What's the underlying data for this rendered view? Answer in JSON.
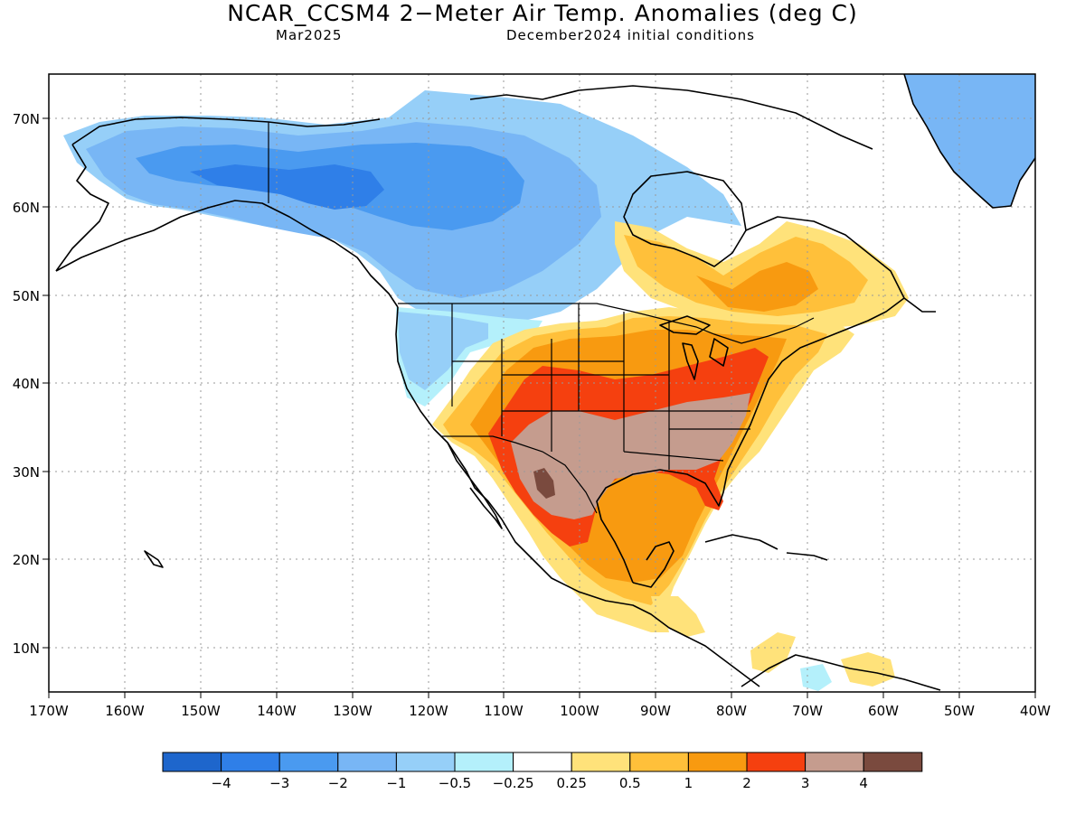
{
  "header": {
    "title": "NCAR_CCSM4 2−Meter Air Temp. Anomalies (deg C)",
    "valid_month": "Mar2025",
    "init": "December2024 initial conditions"
  },
  "axes": {
    "lon_ticks": [
      "170W",
      "160W",
      "150W",
      "140W",
      "130W",
      "120W",
      "110W",
      "100W",
      "90W",
      "80W",
      "70W",
      "60W",
      "50W",
      "40W"
    ],
    "lat_ticks": [
      "70N",
      "60N",
      "50N",
      "40N",
      "30N",
      "20N",
      "10N"
    ],
    "lon_range": [
      -170,
      -40
    ],
    "lat_range": [
      5,
      75
    ],
    "grid": "dotted"
  },
  "legend": {
    "labels": [
      "−4",
      "−3",
      "−2",
      "−1",
      "−0.5",
      "−0.25",
      "0.25",
      "0.5",
      "1",
      "2",
      "3",
      "4"
    ],
    "colors": [
      "#1e66cc",
      "#2f7fe8",
      "#4a9af0",
      "#78b6f5",
      "#96cff8",
      "#b4f0fb",
      "#ffffff",
      "#ffe27a",
      "#ffc03a",
      "#f89a10",
      "#f5400f",
      "#c59c8e",
      "#7a4a3e"
    ]
  },
  "map_data": {
    "variable": "2-meter air temperature anomaly",
    "units": "deg C",
    "regions": [
      {
        "area": "Alaska and Yukon",
        "anomaly_range": [
          -3,
          -1
        ]
      },
      {
        "area": "Western Canada",
        "anomaly_range": [
          -3,
          -1
        ]
      },
      {
        "area": "Pacific Northwest US",
        "anomaly_range": [
          -1,
          -0.25
        ]
      },
      {
        "area": "Greenland",
        "anomaly_range": [
          -2,
          -1
        ]
      },
      {
        "area": "Eastern Canada / Quebec",
        "anomaly_range": [
          0.5,
          2
        ]
      },
      {
        "area": "Central Plains and Great Lakes",
        "anomaly_range": [
          1,
          2
        ]
      },
      {
        "area": "Southwest US and Ohio Valley",
        "anomaly_range": [
          2,
          3
        ]
      },
      {
        "area": "Texas, Southeast US, northern Mexico",
        "anomaly_range": [
          3,
          4
        ]
      },
      {
        "area": "Northern Mexico core",
        "anomaly_range": [
          4,
          5
        ]
      },
      {
        "area": "Central Mexico",
        "anomaly_range": [
          1,
          3
        ]
      },
      {
        "area": "Central America",
        "anomaly_range": [
          0.25,
          1
        ]
      }
    ]
  }
}
